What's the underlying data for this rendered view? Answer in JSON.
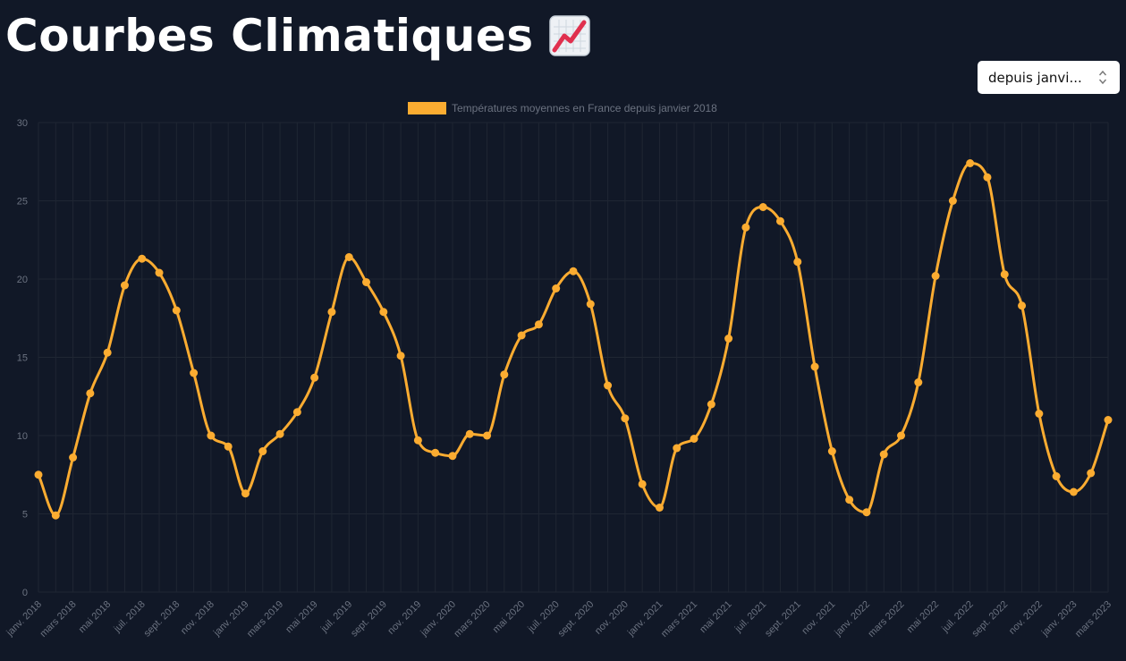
{
  "header": {
    "title": "Courbes Climatiques",
    "icon": "chart-increasing-icon"
  },
  "period_select": {
    "selected": "depuis janvi..."
  },
  "colors": {
    "background": "#111827",
    "series": "#fbac31",
    "grid": "#1f2633"
  },
  "chart_data": {
    "type": "line",
    "title": "",
    "legend": [
      "Températures moyennes en France depuis janvier 2018"
    ],
    "legend_position": "top",
    "ylim": [
      0,
      30
    ],
    "yticks": [
      0,
      5,
      10,
      15,
      20,
      25,
      30
    ],
    "grid": true,
    "x_tick_labels": [
      "janv. 2018",
      "mars 2018",
      "mai 2018",
      "juil. 2018",
      "sept. 2018",
      "nov. 2018",
      "janv. 2019",
      "mars 2019",
      "mai 2019",
      "juil. 2019",
      "sept. 2019",
      "nov. 2019",
      "janv. 2020",
      "mars 2020",
      "mai 2020",
      "juil. 2020",
      "sept. 2020",
      "nov. 2020",
      "janv. 2021",
      "mars 2021",
      "mai 2021",
      "juil. 2021",
      "sept. 2021",
      "nov. 2021",
      "janv. 2022",
      "mars 2022",
      "mai 2022",
      "juil. 2022",
      "sept. 2022",
      "nov. 2022",
      "janv. 2023",
      "mars 2023"
    ],
    "series": [
      {
        "name": "Températures moyennes en France depuis janvier 2018",
        "x": [
          "2018-01",
          "2018-02",
          "2018-03",
          "2018-04",
          "2018-05",
          "2018-06",
          "2018-07",
          "2018-08",
          "2018-09",
          "2018-10",
          "2018-11",
          "2018-12",
          "2019-01",
          "2019-02",
          "2019-03",
          "2019-04",
          "2019-05",
          "2019-06",
          "2019-07",
          "2019-08",
          "2019-09",
          "2019-10",
          "2019-11",
          "2019-12",
          "2020-01",
          "2020-02",
          "2020-03",
          "2020-04",
          "2020-05",
          "2020-06",
          "2020-07",
          "2020-08",
          "2020-09",
          "2020-10",
          "2020-11",
          "2020-12",
          "2021-01",
          "2021-02",
          "2021-03",
          "2021-04",
          "2021-05",
          "2021-06",
          "2021-07",
          "2021-08",
          "2021-09",
          "2021-10",
          "2021-11",
          "2021-12",
          "2022-01",
          "2022-02",
          "2022-03",
          "2022-04",
          "2022-05",
          "2022-06",
          "2022-07",
          "2022-08",
          "2022-09",
          "2022-10",
          "2022-11",
          "2022-12",
          "2023-01",
          "2023-02",
          "2023-03"
        ],
        "values": [
          7.5,
          4.9,
          8.6,
          12.7,
          15.3,
          19.6,
          21.3,
          20.4,
          18.0,
          14.0,
          10.0,
          9.3,
          6.3,
          9.0,
          10.1,
          11.5,
          13.7,
          17.9,
          21.4,
          19.8,
          17.9,
          15.1,
          9.7,
          8.9,
          8.7,
          10.1,
          10.0,
          13.9,
          16.4,
          17.1,
          19.4,
          20.5,
          18.4,
          13.2,
          11.1,
          6.9,
          5.4,
          9.2,
          9.8,
          12.0,
          16.2,
          23.3,
          24.6,
          23.7,
          21.1,
          14.4,
          9.0,
          5.9,
          5.1,
          8.8,
          10.0,
          13.4,
          20.2,
          25.0,
          27.4,
          26.5,
          20.3,
          18.3,
          11.4,
          7.4,
          6.4,
          7.6,
          11.0
        ]
      }
    ]
  }
}
